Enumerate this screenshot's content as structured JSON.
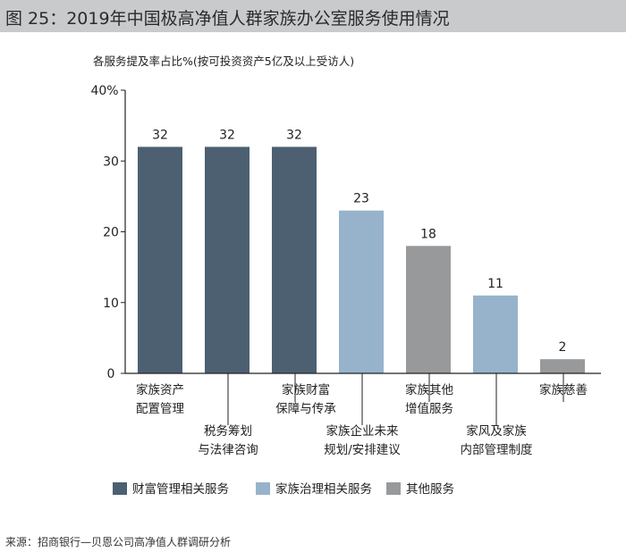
{
  "header": {
    "title": "图 25：2019年中国极高净值人群家族办公室服务使用情况"
  },
  "chart_data": {
    "type": "bar",
    "subtitle": "各服务提及率占比%(按可投资资产5亿及以上受访人)",
    "ylim": [
      0,
      40
    ],
    "yticks": [
      0,
      10,
      20,
      30
    ],
    "ytop_label": "40%",
    "categories": [
      [
        "家族资产",
        "配置管理"
      ],
      [
        "税务筹划",
        "与法律咨询"
      ],
      [
        "家族财富",
        "保障与传承"
      ],
      [
        "家族企业未来",
        "规划/安排建议"
      ],
      [
        "家族其他",
        "增值服务"
      ],
      [
        "家风及家族",
        "内部管理制度"
      ],
      [
        "家族慈善"
      ]
    ],
    "values": [
      32,
      32,
      32,
      23,
      18,
      11,
      2
    ],
    "groups": [
      0,
      0,
      0,
      1,
      2,
      1,
      2
    ],
    "legend": [
      {
        "name": "财富管理相关服务",
        "color": "#4c6072"
      },
      {
        "name": "家族治理相关服务",
        "color": "#97b3cb"
      },
      {
        "name": "其他服务",
        "color": "#98999b"
      }
    ],
    "legend_position": "bottom"
  },
  "footer": {
    "source": "来源：招商银行—贝恩公司高净值人群调研分析"
  }
}
